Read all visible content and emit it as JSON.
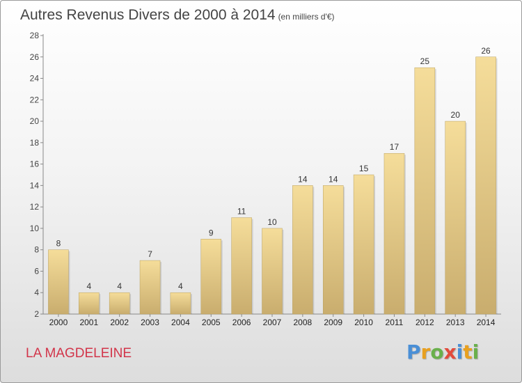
{
  "title": "Autres Revenus Divers de 2000 à 2014",
  "unit": "(en milliers d'€)",
  "location": "LA MAGDELEINE",
  "logo": {
    "text": "Proxiti",
    "letter_colors": [
      "#4a8fd6",
      "#e8a020",
      "#6ab04c",
      "#e24b3c",
      "#4a8fd6",
      "#e8a020",
      "#6ab04c"
    ]
  },
  "chart_data": {
    "type": "bar",
    "categories": [
      "2000",
      "2001",
      "2002",
      "2003",
      "2004",
      "2005",
      "2006",
      "2007",
      "2008",
      "2009",
      "2010",
      "2011",
      "2012",
      "2013",
      "2014"
    ],
    "values": [
      8,
      4,
      4,
      7,
      4,
      9,
      11,
      10,
      14,
      14,
      15,
      17,
      25,
      20,
      26
    ],
    "ylim": [
      2,
      28
    ],
    "yticks": [
      2,
      4,
      6,
      8,
      10,
      12,
      14,
      16,
      18,
      20,
      22,
      24,
      26,
      28
    ],
    "grid": false,
    "bar_color_top": "#f5dd9a",
    "bar_color_bottom": "#c9ad6e"
  }
}
